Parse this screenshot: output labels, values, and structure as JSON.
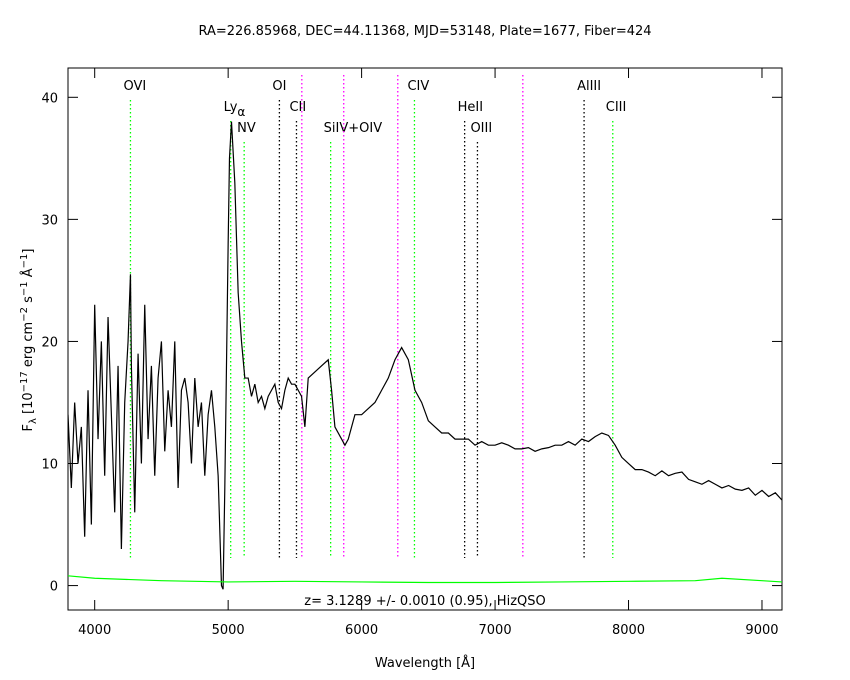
{
  "chart_data": {
    "type": "line",
    "title": "RA=226.85968, DEC=44.11368, MJD=53148, Plate=1677, Fiber=424",
    "xlabel": "Wavelength [Å]",
    "ylabel": [
      {
        "text": "F"
      },
      {
        "text": "λ",
        "script": "sub"
      },
      {
        "text": " [10"
      },
      {
        "text": "−17",
        "script": "sup"
      },
      {
        "text": " erg cm"
      },
      {
        "text": "−2",
        "script": "sup"
      },
      {
        "text": " s"
      },
      {
        "text": "−1",
        "script": "sup"
      },
      {
        "text": " Å"
      },
      {
        "text": "−1",
        "script": "sup"
      },
      {
        "text": "]"
      }
    ],
    "annotation": "z= 3.1289 +/- 0.0010 (0.95), HizQSO",
    "xlim": [
      3800,
      9150
    ],
    "ylim": [
      -2,
      42.4
    ],
    "xticks": [
      4000,
      5000,
      6000,
      7000,
      8000,
      9000
    ],
    "yticks": [
      0,
      10,
      20,
      30,
      40
    ],
    "series": [
      {
        "color": "#000000",
        "x": [
          3800,
          3825,
          3850,
          3875,
          3900,
          3925,
          3950,
          3975,
          4000,
          4025,
          4050,
          4075,
          4100,
          4125,
          4150,
          4175,
          4200,
          4225,
          4250,
          4268,
          4275,
          4300,
          4325,
          4350,
          4375,
          4400,
          4425,
          4450,
          4475,
          4500,
          4525,
          4550,
          4575,
          4600,
          4625,
          4650,
          4675,
          4700,
          4725,
          4750,
          4775,
          4800,
          4825,
          4850,
          4875,
          4900,
          4925,
          4950,
          4962,
          4975,
          5000,
          5010,
          5025,
          5050,
          5075,
          5100,
          5125,
          5150,
          5175,
          5200,
          5225,
          5250,
          5275,
          5300,
          5325,
          5350,
          5375,
          5400,
          5425,
          5450,
          5475,
          5500,
          5525,
          5550,
          5575,
          5600,
          5650,
          5700,
          5750,
          5775,
          5800,
          5850,
          5875,
          5900,
          5950,
          6000,
          6050,
          6100,
          6150,
          6200,
          6250,
          6300,
          6350,
          6400,
          6450,
          6500,
          6550,
          6600,
          6650,
          6700,
          6750,
          6800,
          6850,
          6900,
          6950,
          7000,
          7050,
          7100,
          7150,
          7200,
          7250,
          7300,
          7350,
          7400,
          7450,
          7500,
          7550,
          7600,
          7650,
          7700,
          7750,
          7800,
          7850,
          7900,
          7950,
          8000,
          8050,
          8100,
          8150,
          8200,
          8250,
          8300,
          8350,
          8400,
          8450,
          8500,
          8550,
          8600,
          8650,
          8700,
          8750,
          8800,
          8850,
          8900,
          8950,
          9000,
          9050,
          9100,
          9150
        ],
        "values": [
          14,
          8,
          15,
          10,
          13,
          4,
          16,
          5,
          23,
          12,
          20,
          9,
          22,
          14,
          6,
          18,
          3,
          15,
          20,
          25.5,
          18,
          6,
          19,
          10,
          23,
          12,
          18,
          9,
          17,
          20,
          11,
          16,
          13,
          20,
          8,
          16,
          17,
          15,
          10,
          17,
          13,
          15,
          9,
          14,
          16,
          13,
          9,
          0,
          -0.3,
          8,
          28,
          35,
          38,
          33,
          24,
          20,
          17,
          17,
          15.5,
          16.5,
          15,
          15.5,
          14.5,
          15.5,
          16,
          16.5,
          15,
          14.5,
          16,
          17,
          16.5,
          16.5,
          16,
          15.5,
          13,
          17,
          17.5,
          18,
          18.5,
          16,
          13,
          12,
          11.5,
          12,
          14,
          14,
          14.5,
          15,
          16,
          17,
          18.5,
          19.5,
          18.5,
          16,
          15,
          13.5,
          13,
          12.5,
          12.5,
          12,
          12,
          12,
          11.5,
          11.8,
          11.5,
          11.5,
          11.7,
          11.5,
          11.2,
          11.2,
          11.3,
          11,
          11.2,
          11.3,
          11.5,
          11.5,
          11.8,
          11.5,
          12,
          11.8,
          12.2,
          12.5,
          12.3,
          11.5,
          10.5,
          10,
          9.5,
          9.5,
          9.3,
          9,
          9.4,
          9,
          9.2,
          9.3,
          8.7,
          8.5,
          8.3,
          8.6,
          8.3,
          8,
          8.2,
          7.9,
          7.8,
          8,
          7.4,
          7.8,
          7.3,
          7.6,
          7
        ]
      },
      {
        "color": "#00ff00",
        "x": [
          3800,
          4000,
          4500,
          5000,
          5500,
          6000,
          6500,
          7000,
          7500,
          8000,
          8500,
          8700,
          9000,
          9150
        ],
        "values": [
          0.8,
          0.6,
          0.4,
          0.3,
          0.35,
          0.3,
          0.25,
          0.25,
          0.3,
          0.35,
          0.4,
          0.6,
          0.4,
          0.3
        ]
      }
    ],
    "lines": [
      {
        "wavelength": 4268,
        "color": "#00ff00",
        "label": "OVI",
        "row": 0
      },
      {
        "wavelength": 5019,
        "color": "#00ff00",
        "label": "Ly",
        "label_sub": "α",
        "row": 1
      },
      {
        "wavelength": 5120,
        "color": "#00ff00",
        "label": "NV",
        "row": 2
      },
      {
        "wavelength": 5384,
        "color": "#000000",
        "label": "OI",
        "row": 0
      },
      {
        "wavelength": 5512,
        "color": "#000000",
        "label": "CII",
        "row": 1
      },
      {
        "wavelength": 5552,
        "color": "#ff00ff"
      },
      {
        "wavelength": 5768,
        "color": "#00ff00",
        "label": "SiIV+OIV",
        "row": 2
      },
      {
        "wavelength": 5866,
        "color": "#ff00ff"
      },
      {
        "wavelength": 6271,
        "color": "#ff00ff"
      },
      {
        "wavelength": 6396,
        "color": "#00ff00",
        "label": "CIV",
        "row": 0
      },
      {
        "wavelength": 6772,
        "color": "#000000",
        "label": "HeII",
        "row": 1
      },
      {
        "wavelength": 6868,
        "color": "#000000",
        "label": "OIII",
        "row": 2
      },
      {
        "wavelength": 7208,
        "color": "#ff00ff"
      },
      {
        "wavelength": 7667,
        "color": "#000000",
        "label": "AlIII",
        "row": 0
      },
      {
        "wavelength": 7882,
        "color": "#00ff00",
        "label": "CIII",
        "row": 1
      }
    ]
  }
}
